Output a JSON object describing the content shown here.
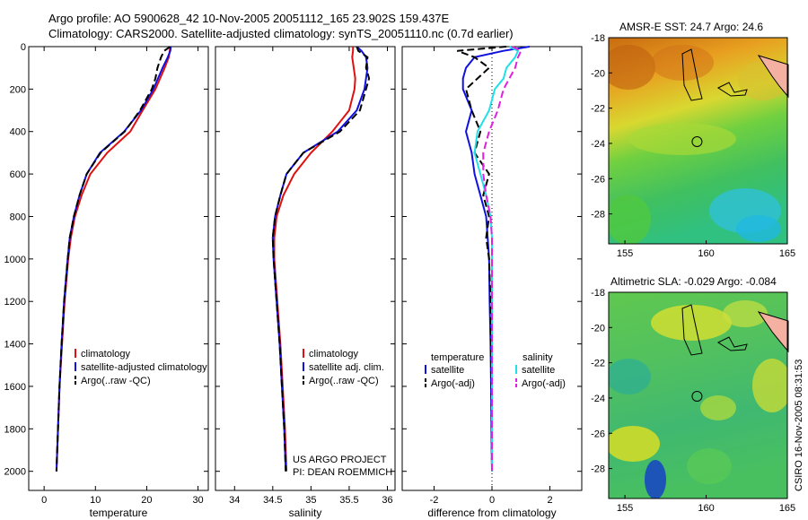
{
  "header": {
    "line1": "Argo profile: AO 5900628_42 10-Nov-2005 20051112_165 23.902S 159.437E",
    "line2": "Climatology: CARS2000. Satellite-adjusted climatology: synTS_20051110.nc (0.7d earlier)"
  },
  "side_label": "CSIRO 16-Nov-2005 08:31:53",
  "colors": {
    "red": "#e01010",
    "blue": "#1010e0",
    "black": "#000000",
    "cyan": "#20e0e8",
    "magenta": "#e020e0"
  },
  "chart_data": [
    {
      "id": "temperature",
      "type": "line",
      "xlabel": "temperature",
      "xlim": [
        -3,
        32
      ],
      "xticks": [
        0,
        10,
        20,
        30
      ],
      "ylim": [
        2090,
        0
      ],
      "yticks": [
        0,
        200,
        400,
        600,
        800,
        1000,
        1200,
        1400,
        1600,
        1800,
        2000
      ],
      "depth": [
        0,
        20,
        50,
        100,
        150,
        200,
        300,
        400,
        500,
        600,
        700,
        800,
        900,
        1000,
        1200,
        1400,
        1600,
        1800,
        2000
      ],
      "series": [
        {
          "name": "climatology",
          "color": "red",
          "dash": false,
          "values": [
            24.6,
            24.5,
            24.3,
            23.5,
            22.6,
            21.7,
            19.2,
            16.8,
            12.3,
            9.0,
            7.3,
            6.0,
            5.2,
            4.7,
            4.0,
            3.5,
            3.0,
            2.7,
            2.4
          ]
        },
        {
          "name": "satellite-adjusted climatology",
          "color": "blue",
          "dash": false,
          "values": [
            24.7,
            24.6,
            24.1,
            23.1,
            22.2,
            21.3,
            18.9,
            15.6,
            10.9,
            8.3,
            6.9,
            5.8,
            5.0,
            4.6,
            3.9,
            3.4,
            3.0,
            2.7,
            2.4
          ]
        },
        {
          "name": "Argo(..raw -QC)",
          "color": "black",
          "dash": true,
          "values": [
            24.6,
            23.4,
            22.8,
            22.1,
            21.7,
            21.0,
            18.7,
            15.7,
            11.0,
            8.3,
            6.9,
            5.8,
            5.0,
            4.6,
            3.9,
            3.4,
            3.0,
            2.7,
            2.4
          ]
        }
      ],
      "legend": [
        "climatology",
        "satellite-adjusted climatology",
        "Argo(..raw -QC)"
      ]
    },
    {
      "id": "salinity",
      "type": "line",
      "xlabel": "salinity",
      "xlim": [
        33.75,
        36.1
      ],
      "xticks": [
        34,
        34.5,
        35,
        35.5,
        36
      ],
      "ylim": [
        2090,
        0
      ],
      "depth": [
        0,
        20,
        50,
        100,
        150,
        200,
        300,
        400,
        500,
        600,
        700,
        800,
        900,
        1000,
        1200,
        1400,
        1600,
        1800,
        2000
      ],
      "series": [
        {
          "name": "climatology",
          "color": "red",
          "dash": false,
          "values": [
            35.55,
            35.55,
            35.54,
            35.56,
            35.58,
            35.57,
            35.5,
            35.28,
            35.0,
            34.78,
            34.64,
            34.55,
            34.52,
            34.52,
            34.56,
            34.6,
            34.63,
            34.66,
            34.68
          ]
        },
        {
          "name": "satellite adj. clim.",
          "color": "blue",
          "dash": false,
          "values": [
            35.6,
            35.66,
            35.72,
            35.74,
            35.72,
            35.7,
            35.6,
            35.35,
            34.9,
            34.68,
            34.6,
            34.53,
            34.5,
            34.51,
            34.55,
            34.59,
            34.62,
            34.65,
            34.67
          ]
        },
        {
          "name": "Argo(..raw -QC)",
          "color": "black",
          "dash": true,
          "values": [
            35.6,
            35.62,
            35.74,
            35.72,
            35.76,
            35.72,
            35.64,
            35.38,
            34.9,
            34.68,
            34.6,
            34.53,
            34.5,
            34.51,
            34.55,
            34.59,
            34.62,
            34.65,
            34.67
          ]
        }
      ],
      "legend": [
        "climatology",
        "satellite adj. clim.",
        "Argo(..raw -QC)"
      ],
      "annotation": [
        "US ARGO PROJECT",
        "PI: DEAN ROEMMICH"
      ]
    },
    {
      "id": "difference",
      "type": "line",
      "xlabel": "difference from climatology",
      "xlim": [
        -3.1,
        3.1
      ],
      "xticks": [
        -2,
        0,
        2
      ],
      "ylim": [
        2090,
        0
      ],
      "depth": [
        0,
        20,
        50,
        100,
        150,
        200,
        300,
        400,
        500,
        600,
        700,
        800,
        900,
        1000,
        1200,
        1400,
        1600,
        1800,
        2000
      ],
      "series": [
        {
          "name": "temperature satellite",
          "color": "blue",
          "dash": false,
          "values": [
            1.3,
            0.4,
            -0.6,
            -0.9,
            -1.0,
            -1.0,
            -0.7,
            -0.9,
            -0.7,
            -0.6,
            -0.4,
            -0.2,
            -0.15,
            -0.1,
            -0.08,
            -0.05,
            -0.03,
            -0.02,
            0.0
          ]
        },
        {
          "name": "temperature Argo(-adj)",
          "color": "black",
          "dash": true,
          "values": [
            0.5,
            -1.2,
            -0.6,
            -0.1,
            -0.5,
            -0.9,
            -0.7,
            -0.4,
            -0.6,
            -0.1,
            -0.3,
            -0.1,
            -0.2,
            -0.1,
            -0.05,
            -0.03,
            -0.02,
            -0.01,
            0.0
          ]
        },
        {
          "name": "salinity satellite",
          "color": "cyan",
          "dash": false,
          "values": [
            0.6,
            0.9,
            0.8,
            0.5,
            0.4,
            0.1,
            -0.1,
            -0.5,
            -0.6,
            -0.4,
            -0.2,
            -0.05,
            0.0,
            0.0,
            0.0,
            0.0,
            0.0,
            0.0,
            0.0
          ]
        },
        {
          "name": "salinity Argo(-adj)",
          "color": "magenta",
          "dash": true,
          "values": [
            0.7,
            1.0,
            0.9,
            0.8,
            0.6,
            0.4,
            0.2,
            -0.1,
            -0.3,
            -0.3,
            -0.2,
            -0.05,
            0.0,
            0.0,
            0.0,
            0.0,
            0.0,
            0.0,
            0.0
          ]
        }
      ],
      "legend_headers": [
        "temperature",
        "salinity"
      ],
      "legend": [
        "satellite",
        "Argo(-adj)",
        "satellite",
        "Argo(-adj)"
      ]
    },
    {
      "id": "sst_map",
      "type": "heatmap",
      "title": "AMSR-E SST: 24.7 Argo: 24.6",
      "xlim": [
        154,
        165
      ],
      "ylim": [
        -29.7,
        -18
      ],
      "xticks": [
        155,
        160,
        165
      ],
      "yticks": [
        -18,
        -20,
        -22,
        -24,
        -26,
        -28
      ],
      "marker": {
        "lon": 159.44,
        "lat": -23.9
      }
    },
    {
      "id": "sla_map",
      "type": "heatmap",
      "title": "Altimetric SLA: -0.029 Argo: -0.084",
      "xlim": [
        154,
        165
      ],
      "ylim": [
        -29.7,
        -18
      ],
      "xticks": [
        155,
        160,
        165
      ],
      "yticks": [
        -18,
        -20,
        -22,
        -24,
        -26,
        -28
      ],
      "marker": {
        "lon": 159.44,
        "lat": -23.9
      }
    }
  ]
}
